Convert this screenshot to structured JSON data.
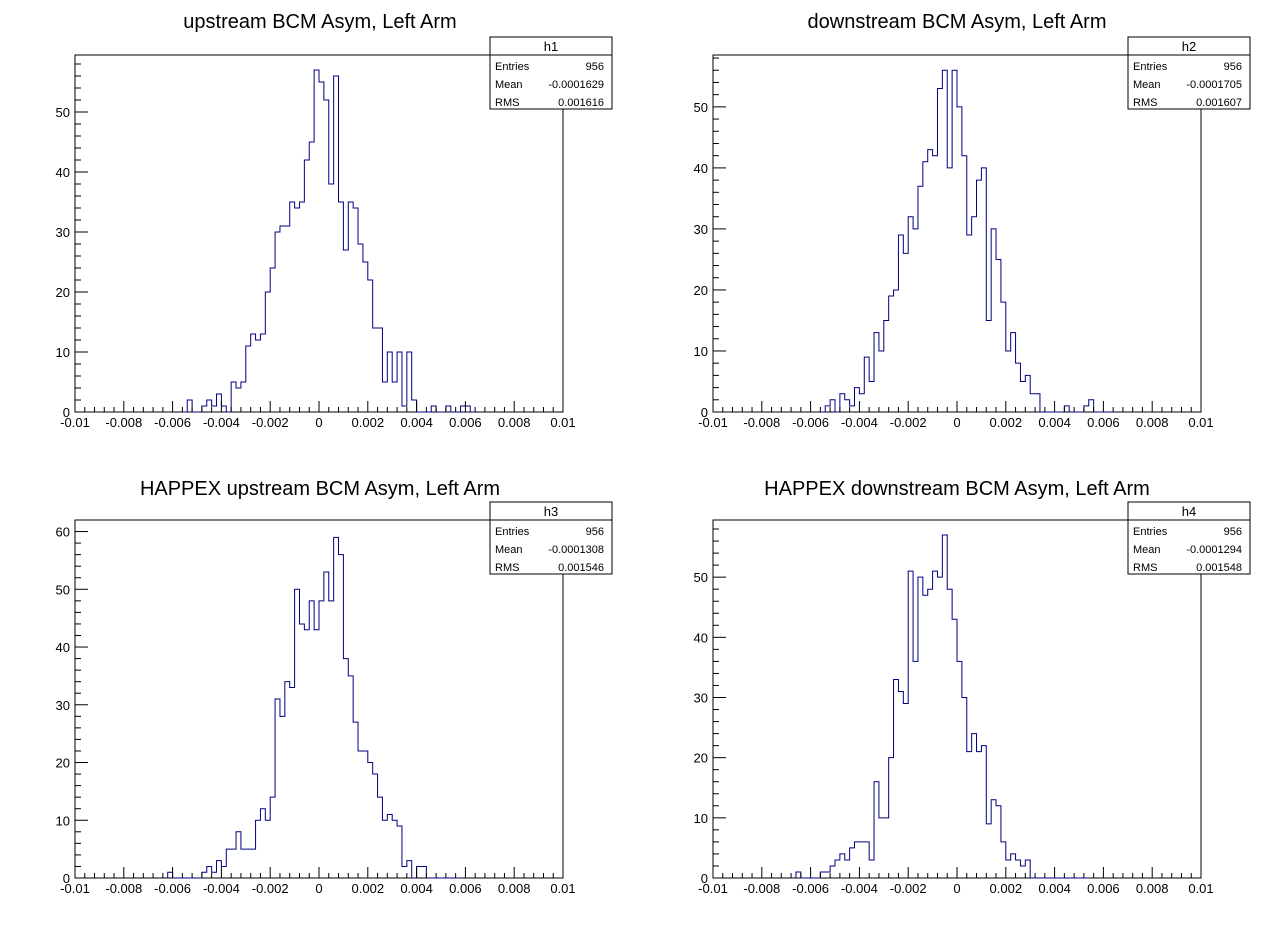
{
  "chart_data": [
    {
      "type": "bar",
      "name": "h1",
      "title": "upstream BCM Asym, Left Arm",
      "xlim": [
        -0.01,
        0.01
      ],
      "ylim": [
        0,
        59.5
      ],
      "x_ticks": [
        "-0.01",
        "-0.008",
        "-0.006",
        "-0.004",
        "-0.002",
        "0",
        "0.002",
        "0.004",
        "0.006",
        "0.008",
        "0.01"
      ],
      "y_ticks": [
        "0",
        "10",
        "20",
        "30",
        "40",
        "50"
      ],
      "y_tick_values": [
        0,
        10,
        20,
        30,
        40,
        50
      ],
      "bin_width": 0.0002,
      "bins_start": -0.0056,
      "counts": [
        0,
        2,
        0,
        0,
        1,
        2,
        1,
        3,
        1,
        0,
        5,
        4,
        5,
        11,
        13,
        12,
        13,
        20,
        24,
        30,
        31,
        31,
        35,
        34,
        35,
        42,
        45,
        57,
        55,
        52,
        38,
        56,
        35,
        27,
        35,
        34,
        28,
        25,
        22,
        14,
        14,
        5,
        10,
        5,
        10,
        1,
        10,
        2,
        0,
        0,
        0,
        1,
        0,
        0,
        1,
        0,
        0,
        1,
        1,
        0
      ],
      "stats": {
        "title": "h1",
        "entries_label": "Entries",
        "entries": "956",
        "mean_label": "Mean",
        "mean": "-0.0001629",
        "rms_label": "RMS",
        "rms": "0.001616"
      }
    },
    {
      "type": "bar",
      "name": "h2",
      "title": "downstream BCM Asym, Left Arm",
      "xlim": [
        -0.01,
        0.01
      ],
      "ylim": [
        0,
        58.5
      ],
      "x_ticks": [
        "-0.01",
        "-0.008",
        "-0.006",
        "-0.004",
        "-0.002",
        "0",
        "0.002",
        "0.004",
        "0.006",
        "0.008",
        "0.01"
      ],
      "y_ticks": [
        "0",
        "10",
        "20",
        "30",
        "40",
        "50"
      ],
      "y_tick_values": [
        0,
        10,
        20,
        30,
        40,
        50
      ],
      "bin_width": 0.0002,
      "bins_start": -0.0056,
      "counts": [
        0,
        1,
        2,
        0,
        3,
        2,
        1,
        4,
        3,
        9,
        5,
        13,
        10,
        15,
        19,
        20,
        29,
        26,
        32,
        30,
        37,
        41,
        43,
        42,
        53,
        56,
        40,
        56,
        50,
        42,
        29,
        32,
        38,
        40,
        15,
        30,
        25,
        18,
        10,
        13,
        8,
        5,
        6,
        3,
        3,
        0,
        0,
        0,
        0,
        0,
        1,
        0,
        0,
        0,
        1,
        2,
        0,
        0,
        0,
        0
      ],
      "stats": {
        "title": "h2",
        "entries_label": "Entries",
        "entries": "956",
        "mean_label": "Mean",
        "mean": "-0.0001705",
        "rms_label": "RMS",
        "rms": "0.001607"
      }
    },
    {
      "type": "bar",
      "name": "h3",
      "title": "HAPPEX upstream BCM Asym, Left Arm",
      "xlim": [
        -0.01,
        0.01
      ],
      "ylim": [
        0,
        62
      ],
      "x_ticks": [
        "-0.01",
        "-0.008",
        "-0.006",
        "-0.004",
        "-0.002",
        "0",
        "0.002",
        "0.004",
        "0.006",
        "0.008",
        "0.01"
      ],
      "y_ticks": [
        "0",
        "10",
        "20",
        "30",
        "40",
        "50",
        "60"
      ],
      "y_tick_values": [
        0,
        10,
        20,
        30,
        40,
        50,
        60
      ],
      "bin_width": 0.0002,
      "bins_start": -0.0062,
      "counts": [
        1,
        0,
        0,
        0,
        0,
        0,
        0,
        1,
        2,
        1,
        3,
        2,
        5,
        5,
        8,
        5,
        5,
        5,
        10,
        12,
        10,
        14,
        31,
        28,
        34,
        33,
        50,
        44,
        43,
        48,
        43,
        48,
        53,
        48,
        59,
        56,
        38,
        35,
        27,
        22,
        22,
        20,
        18,
        14,
        10,
        11,
        10,
        9,
        2,
        3,
        0,
        2,
        2,
        0,
        0,
        0,
        0,
        0,
        0,
        0
      ],
      "stats": {
        "title": "h3",
        "entries_label": "Entries",
        "entries": "956",
        "mean_label": "Mean",
        "mean": "-0.0001308",
        "rms_label": "RMS",
        "rms": "0.001546"
      }
    },
    {
      "type": "bar",
      "name": "h4",
      "title": "HAPPEX downstream BCM Asym, Left Arm",
      "xlim": [
        -0.01,
        0.01
      ],
      "ylim": [
        0,
        59.5
      ],
      "x_ticks": [
        "-0.01",
        "-0.008",
        "-0.006",
        "-0.004",
        "-0.002",
        "0",
        "0.002",
        "0.004",
        "0.006",
        "0.008",
        "0.01"
      ],
      "y_ticks": [
        "0",
        "10",
        "20",
        "30",
        "40",
        "50"
      ],
      "y_tick_values": [
        0,
        10,
        20,
        30,
        40,
        50
      ],
      "bin_width": 0.0002,
      "bins_start": -0.0066,
      "counts": [
        1,
        0,
        0,
        0,
        0,
        1,
        1,
        2,
        3,
        4,
        3,
        5,
        6,
        6,
        6,
        3,
        16,
        10,
        10,
        20,
        33,
        31,
        29,
        51,
        36,
        50,
        47,
        48,
        51,
        50,
        57,
        48,
        43,
        36,
        30,
        21,
        24,
        21,
        22,
        9,
        13,
        12,
        6,
        3,
        4,
        3,
        2,
        3,
        0,
        0,
        0,
        0,
        0,
        0,
        0,
        0,
        0,
        0,
        0,
        0
      ],
      "stats": {
        "title": "h4",
        "entries_label": "Entries",
        "entries": "956",
        "mean_label": "Mean",
        "mean": "-0.0001294",
        "rms_label": "RMS",
        "rms": "0.001548"
      }
    }
  ],
  "colors": {
    "line": "#000080",
    "axis": "#000000",
    "background": "#ffffff"
  }
}
